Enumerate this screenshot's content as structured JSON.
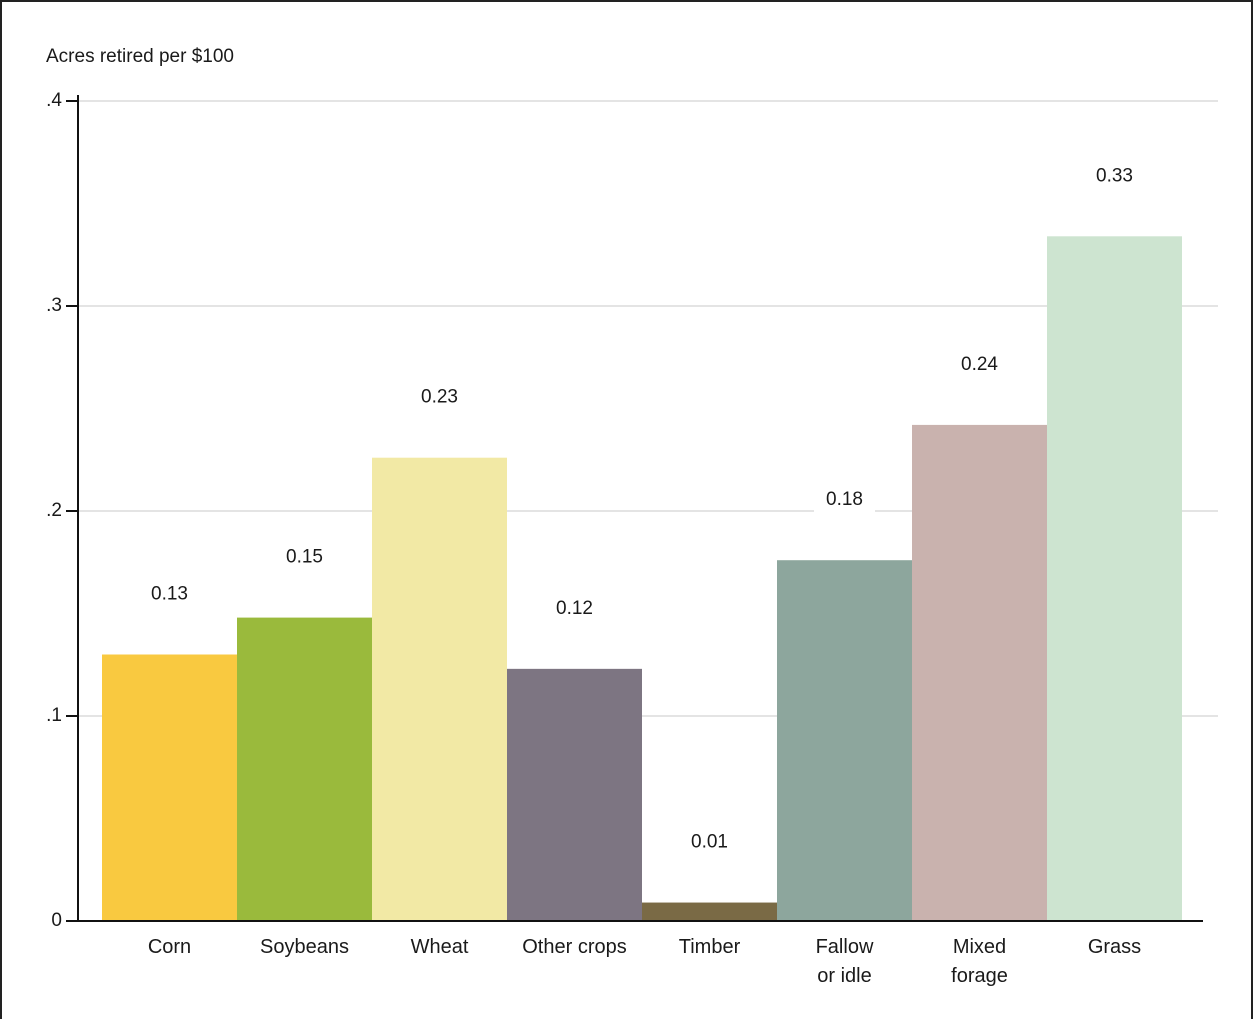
{
  "chart_data": {
    "type": "bar",
    "title": "Acres retired per $100",
    "categories": [
      "Corn",
      "Soybeans",
      "Wheat",
      "Other crops",
      "Timber",
      "Fallow\nor idle",
      "Mixed\nforage",
      "Grass"
    ],
    "values": [
      0.13,
      0.148,
      0.226,
      0.123,
      0.009,
      0.176,
      0.242,
      0.334
    ],
    "value_labels": [
      "0.13",
      "0.15",
      "0.23",
      "0.12",
      "0.01",
      "0.18",
      "0.24",
      "0.33"
    ],
    "colors": [
      "#f9c940",
      "#9aba3c",
      "#f2e9a5",
      "#7d7582",
      "#7a6a45",
      "#8da69d",
      "#c9b2ae",
      "#cde4d0"
    ],
    "ylim": [
      0,
      0.4
    ],
    "yticks": [
      0,
      {
        "value": 0.1,
        "label": ".1"
      },
      {
        "value": 0.2,
        "label": ".2"
      },
      {
        "value": 0.3,
        "label": ".3"
      },
      {
        "value": 0.4,
        "label": ".4"
      }
    ],
    "grid": true
  }
}
